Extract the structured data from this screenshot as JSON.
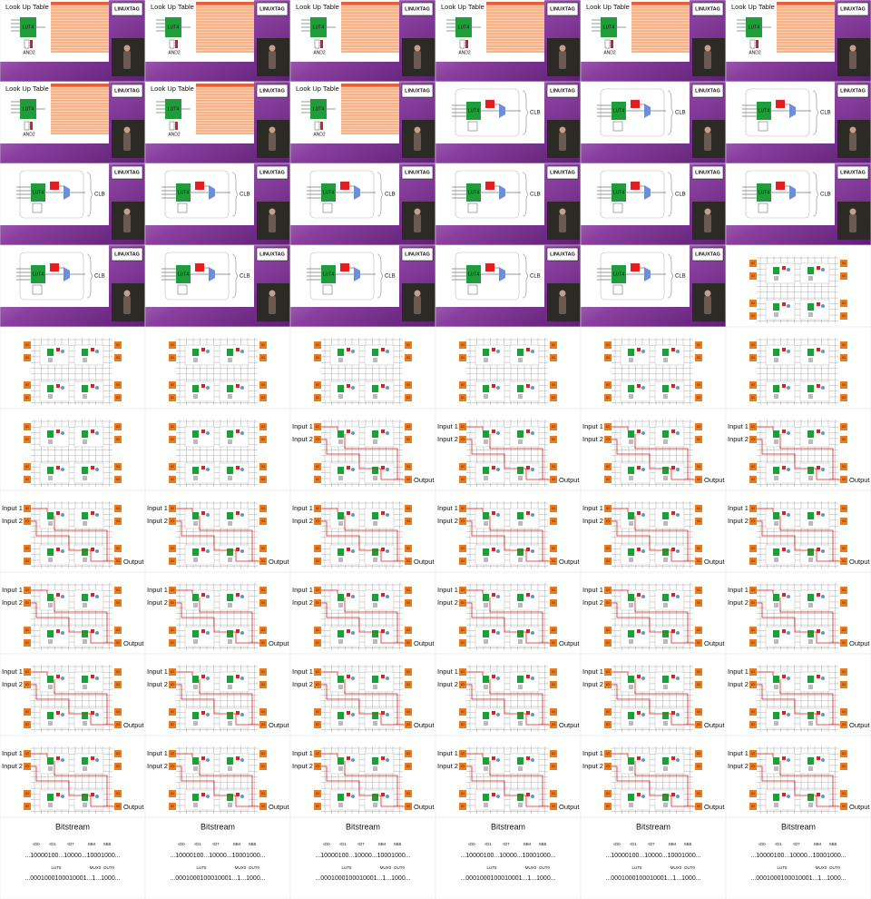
{
  "frames": [
    "lut",
    "lut",
    "lut",
    "lut",
    "lut",
    "lut",
    "lut",
    "lut",
    "lut",
    "clb",
    "clb",
    "clb",
    "clb",
    "clb",
    "clb",
    "clb",
    "clb",
    "clb",
    "clb",
    "clb",
    "clb",
    "clb",
    "clb",
    "fabric",
    "fabric",
    "fabric",
    "fabric",
    "fabric",
    "fabric",
    "fabric",
    "fabric",
    "fabric",
    "route",
    "route",
    "route",
    "route",
    "route",
    "route",
    "route",
    "route",
    "route",
    "route",
    "route",
    "route",
    "route",
    "route",
    "route",
    "route",
    "route",
    "route",
    "route",
    "route",
    "route",
    "route",
    "route",
    "route",
    "route",
    "route",
    "route",
    "route",
    "bitstream",
    "bitstream",
    "bitstream",
    "bitstream",
    "bitstream",
    "bitstream"
  ],
  "logo": "LINUXTAG",
  "lut": {
    "title": "Look Up Table",
    "block": "LUT4",
    "gate": "AND2"
  },
  "clb": {
    "block": "LUT4",
    "label": "CLB"
  },
  "fabric": {
    "io": "IO"
  },
  "route": {
    "inputs": [
      "Input 1",
      "Input 2"
    ],
    "output": "Output"
  },
  "bitstream": {
    "title": "Bitstream",
    "fields1": [
      "IO0",
      "IO1",
      "IO7",
      "SB4",
      "SB5"
    ],
    "bits1": "...10000100...10000...10001000...",
    "fields2": [
      "LUT5",
      "MUX0",
      "OUT0"
    ],
    "bits2": "...0001000100010001...1...1000..."
  }
}
